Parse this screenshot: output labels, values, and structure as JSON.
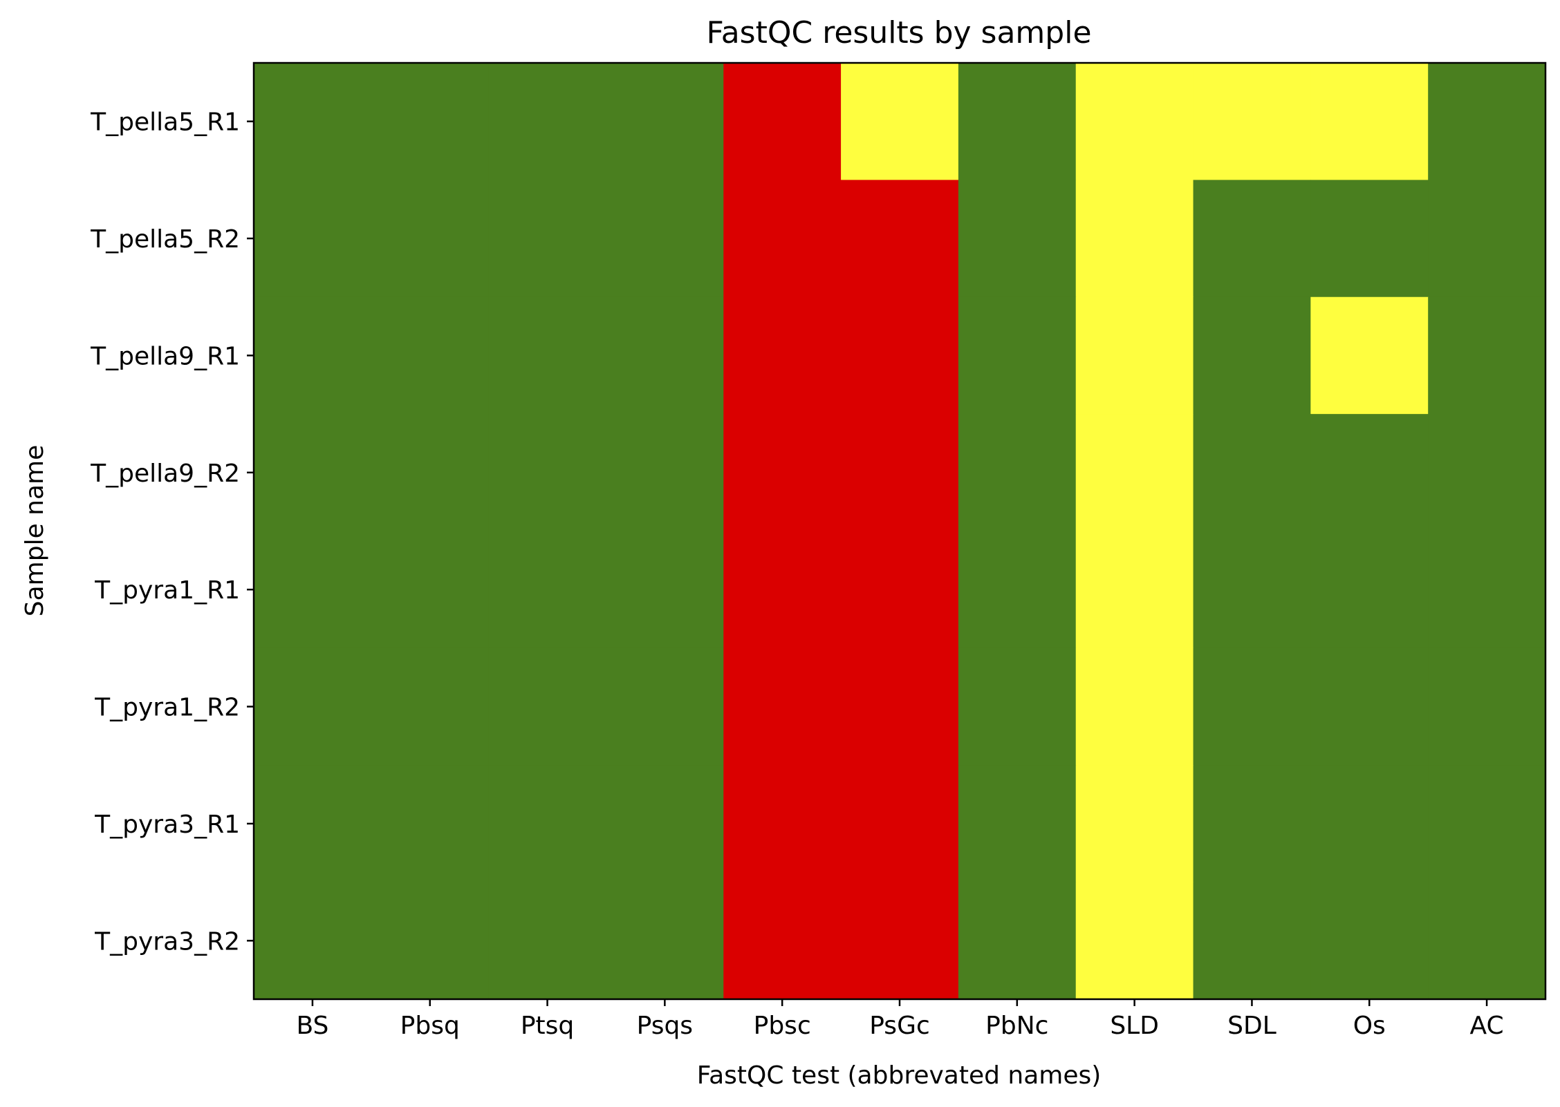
{
  "chart_data": {
    "type": "heatmap",
    "title": "FastQC results by sample",
    "xlabel": "FastQC test (abbrevated names)",
    "ylabel": "Sample name",
    "x_categories": [
      "BS",
      "Pbsq",
      "Ptsq",
      "Psqs",
      "Pbsc",
      "PsGc",
      "PbNc",
      "SLD",
      "SDL",
      "Os",
      "AC"
    ],
    "y_categories": [
      "T_pella5_R1",
      "T_pella5_R2",
      "T_pella9_R1",
      "T_pella9_R2",
      "T_pyra1_R1",
      "T_pyra1_R2",
      "T_pyra3_R1",
      "T_pyra3_R2"
    ],
    "status_colors": {
      "pass": "#4a7f1f",
      "warn": "#fefe3f",
      "fail": "#da0000"
    },
    "cells": [
      [
        "pass",
        "pass",
        "pass",
        "pass",
        "fail",
        "warn",
        "pass",
        "warn",
        "warn",
        "warn",
        "pass"
      ],
      [
        "pass",
        "pass",
        "pass",
        "pass",
        "fail",
        "fail",
        "pass",
        "warn",
        "pass",
        "pass",
        "pass"
      ],
      [
        "pass",
        "pass",
        "pass",
        "pass",
        "fail",
        "fail",
        "pass",
        "warn",
        "pass",
        "warn",
        "pass"
      ],
      [
        "pass",
        "pass",
        "pass",
        "pass",
        "fail",
        "fail",
        "pass",
        "warn",
        "pass",
        "pass",
        "pass"
      ],
      [
        "pass",
        "pass",
        "pass",
        "pass",
        "fail",
        "fail",
        "pass",
        "warn",
        "pass",
        "pass",
        "pass"
      ],
      [
        "pass",
        "pass",
        "pass",
        "pass",
        "fail",
        "fail",
        "pass",
        "warn",
        "pass",
        "pass",
        "pass"
      ],
      [
        "pass",
        "pass",
        "pass",
        "pass",
        "fail",
        "fail",
        "pass",
        "warn",
        "pass",
        "pass",
        "pass"
      ],
      [
        "pass",
        "pass",
        "pass",
        "pass",
        "fail",
        "fail",
        "pass",
        "warn",
        "pass",
        "pass",
        "pass"
      ]
    ],
    "grid": false,
    "legend": "none"
  }
}
